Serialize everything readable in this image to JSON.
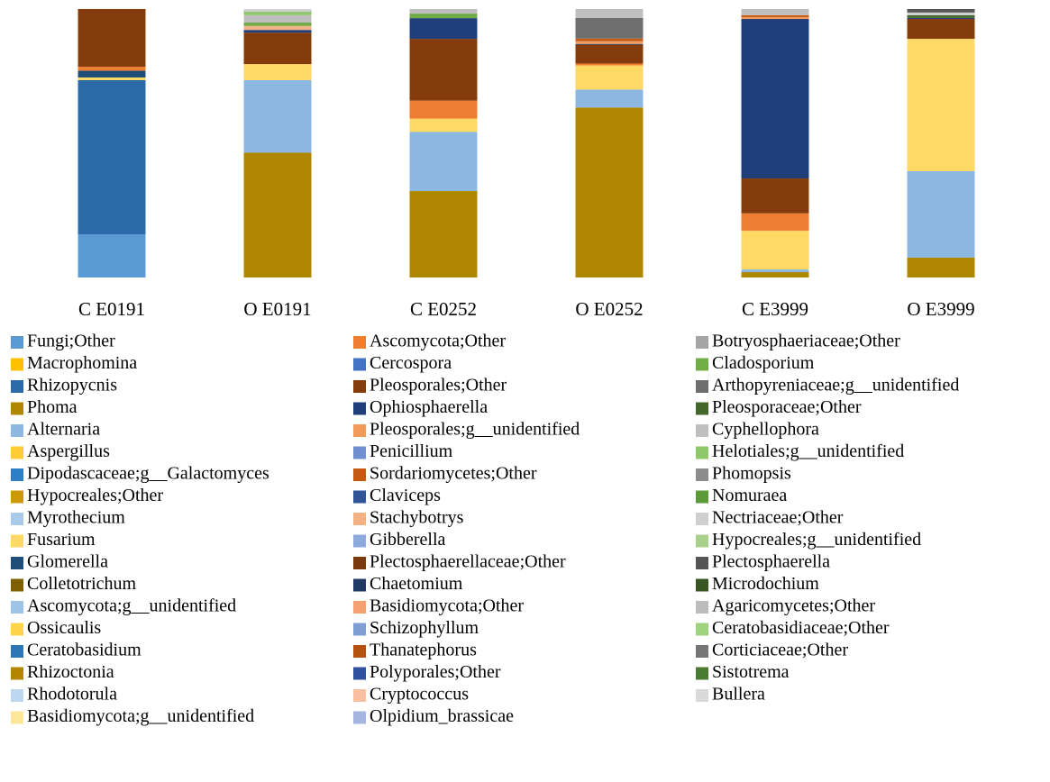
{
  "chart_data": {
    "type": "bar",
    "stacked": true,
    "categories": [
      "C E0191",
      "O E0191",
      "C E0252",
      "O E0252",
      "C E3999",
      "O E3999"
    ],
    "ylim": [
      0,
      100
    ],
    "series": [
      {
        "name": "Fungi;Other",
        "color": "#5b9bd5",
        "values": [
          16,
          0,
          0,
          0,
          0,
          0
        ]
      },
      {
        "name": "Macrophomina",
        "color": "#ffc000",
        "values": [
          0,
          0,
          0,
          0,
          0,
          0
        ]
      },
      {
        "name": "Rhizopycnis",
        "color": "#2a6aa8",
        "values": [
          57.5,
          0,
          0,
          0,
          0,
          0
        ]
      },
      {
        "name": "Phoma",
        "color": "#b08700",
        "values": [
          0,
          46.5,
          32.2,
          63.3,
          2,
          7.4
        ]
      },
      {
        "name": "Alternaria",
        "color": "#8db8e2",
        "values": [
          0,
          27,
          22,
          6.7,
          1,
          32.2
        ]
      },
      {
        "name": "Aspergillus",
        "color": "#ffcd33",
        "values": [
          0,
          0,
          0,
          0,
          0,
          0
        ]
      },
      {
        "name": "Dipodascaceae;g__Galactomyces",
        "color": "#2e7fc6",
        "values": [
          0,
          0,
          0,
          0,
          0,
          0
        ]
      },
      {
        "name": "Hypocreales;Other",
        "color": "#cc9a06",
        "values": [
          0,
          0,
          0,
          0,
          0,
          0
        ]
      },
      {
        "name": "Myrothecium",
        "color": "#a9c9e8",
        "values": [
          0,
          0,
          0,
          0,
          0,
          0
        ]
      },
      {
        "name": "Fusarium",
        "color": "#ffd966",
        "values": [
          1,
          6,
          5,
          9,
          14.4,
          49.3
        ]
      },
      {
        "name": "Glomerella",
        "color": "#1f4e79",
        "values": [
          2.5,
          0,
          0,
          0,
          0,
          0
        ]
      },
      {
        "name": "Colletotrichum",
        "color": "#7f6000",
        "values": [
          0,
          0,
          0,
          0,
          0,
          0
        ]
      },
      {
        "name": "Ascomycota;g__unidentified",
        "color": "#9dc3e6",
        "values": [
          0,
          0,
          0,
          0,
          0,
          0
        ]
      },
      {
        "name": "Ossicaulis",
        "color": "#ffd44a",
        "values": [
          0,
          0,
          0,
          0,
          0,
          0
        ]
      },
      {
        "name": "Ceratobasidium",
        "color": "#2e75b6",
        "values": [
          0,
          0,
          0,
          0,
          0,
          0
        ]
      },
      {
        "name": "Rhizoctonia",
        "color": "#b38600",
        "values": [
          0,
          0,
          0,
          0,
          0,
          0
        ]
      },
      {
        "name": "Rhodotorula",
        "color": "#bdd7ee",
        "values": [
          0,
          0,
          0,
          0,
          0,
          0
        ]
      },
      {
        "name": "Basidiomycota;g__unidentified",
        "color": "#ffe699",
        "values": [
          0,
          0,
          0,
          0,
          0,
          0
        ]
      },
      {
        "name": "Ascomycota;Other",
        "color": "#ed7d31",
        "values": [
          1.5,
          0,
          6.7,
          0.7,
          6.5,
          0
        ]
      },
      {
        "name": "Cercospora",
        "color": "#4472c4",
        "values": [
          0,
          0,
          0,
          0,
          0,
          0
        ]
      },
      {
        "name": "Pleosporales;Other",
        "color": "#843c0c",
        "values": [
          21.5,
          11.7,
          23,
          7,
          13,
          7.4
        ]
      },
      {
        "name": "Ophiosphaerella",
        "color": "#203f7a",
        "values": [
          0,
          1,
          7.7,
          0.3,
          59.4,
          0.4
        ]
      },
      {
        "name": "Pleosporales;g__unidentified",
        "color": "#f19a5a",
        "values": [
          0,
          0,
          0,
          1,
          0.7,
          0
        ]
      },
      {
        "name": "Penicillium",
        "color": "#6f8fd0",
        "values": [
          0,
          0,
          0,
          0,
          0,
          0
        ]
      },
      {
        "name": "Sordariomycetes;Other",
        "color": "#c55a11",
        "values": [
          0,
          0,
          0,
          1,
          0.7,
          0
        ]
      },
      {
        "name": "Claviceps",
        "color": "#2f5597",
        "values": [
          0,
          0,
          0,
          0,
          0,
          0
        ]
      },
      {
        "name": "Stachybotrys",
        "color": "#f4b183",
        "values": [
          0,
          1.5,
          0,
          0,
          0,
          0
        ]
      },
      {
        "name": "Gibberella",
        "color": "#8ea9db",
        "values": [
          0,
          0,
          0,
          0,
          0,
          0
        ]
      },
      {
        "name": "Plectosphaerellaceae;Other",
        "color": "#7a3a10",
        "values": [
          0,
          0,
          0,
          0,
          0,
          0
        ]
      },
      {
        "name": "Chaetomium",
        "color": "#1f3864",
        "values": [
          0,
          0,
          0,
          0,
          0,
          0
        ]
      },
      {
        "name": "Basidiomycota;Other",
        "color": "#f4a070",
        "values": [
          0,
          0,
          0,
          0,
          0,
          0
        ]
      },
      {
        "name": "Schizophyllum",
        "color": "#7f9fd4",
        "values": [
          0,
          0,
          0,
          0,
          0,
          0
        ]
      },
      {
        "name": "Thanatephorus",
        "color": "#b5520f",
        "values": [
          0,
          0,
          0,
          0,
          0,
          0
        ]
      },
      {
        "name": "Polyporales;Other",
        "color": "#2f4f9f",
        "values": [
          0,
          0,
          0,
          0,
          0,
          0
        ]
      },
      {
        "name": "Cryptococcus",
        "color": "#f8bfa0",
        "values": [
          0,
          0,
          0,
          0,
          0,
          0
        ]
      },
      {
        "name": "Olpidium_brassicae",
        "color": "#a4b6e0",
        "values": [
          0,
          0,
          0,
          0,
          0,
          0
        ]
      },
      {
        "name": "Botryosphaeriaceae;Other",
        "color": "#a5a5a5",
        "values": [
          0,
          0,
          0,
          0,
          0,
          0
        ]
      },
      {
        "name": "Cladosporium",
        "color": "#70ad47",
        "values": [
          0,
          1.3,
          1.7,
          0,
          0,
          0
        ]
      },
      {
        "name": "Arthopyreniaceae;g__unidentified",
        "color": "#6e6e6e",
        "values": [
          0,
          0,
          0,
          7.7,
          0,
          0
        ]
      },
      {
        "name": "Pleosporaceae;Other",
        "color": "#43682b",
        "values": [
          0,
          0,
          0,
          0,
          0,
          1
        ]
      },
      {
        "name": "Cyphellophora",
        "color": "#bfbfbf",
        "values": [
          0,
          2.7,
          1.7,
          3.3,
          2.3,
          0
        ]
      },
      {
        "name": "Helotiales;g__unidentified",
        "color": "#8fc76b",
        "values": [
          0,
          1.3,
          0,
          0,
          0,
          0
        ]
      },
      {
        "name": "Phomopsis",
        "color": "#8c8c8c",
        "values": [
          0,
          0,
          0,
          0,
          0,
          0
        ]
      },
      {
        "name": "Nomuraea",
        "color": "#5e9a3a",
        "values": [
          0,
          0,
          0,
          0,
          0,
          0
        ]
      },
      {
        "name": "Nectriaceae;Other",
        "color": "#d0d0d0",
        "values": [
          0,
          1,
          0,
          0,
          0,
          1
        ]
      },
      {
        "name": "Hypocreales;g__unidentified",
        "color": "#a9d18e",
        "values": [
          0,
          0,
          0,
          0,
          0,
          0
        ]
      },
      {
        "name": "Plectosphaerella",
        "color": "#555555",
        "values": [
          0,
          0,
          0,
          0,
          0,
          1.3
        ]
      },
      {
        "name": "Microdochium",
        "color": "#375623",
        "values": [
          0,
          0,
          0,
          0,
          0,
          0
        ]
      },
      {
        "name": "Agaricomycetes;Other",
        "color": "#bcbcbc",
        "values": [
          0,
          0,
          0,
          0,
          0,
          0
        ]
      },
      {
        "name": "Ceratobasidiaceae;Other",
        "color": "#9fd27f",
        "values": [
          0,
          0,
          0,
          0,
          0,
          0
        ]
      },
      {
        "name": "Corticiaceae;Other",
        "color": "#757575",
        "values": [
          0,
          0,
          0,
          0,
          0,
          0
        ]
      },
      {
        "name": "Sistotrema",
        "color": "#4b7a32",
        "values": [
          0,
          0,
          0,
          0,
          0,
          0
        ]
      },
      {
        "name": "Bullera",
        "color": "#d9d9d9",
        "values": [
          0,
          0,
          0,
          0,
          0,
          0
        ]
      }
    ]
  }
}
